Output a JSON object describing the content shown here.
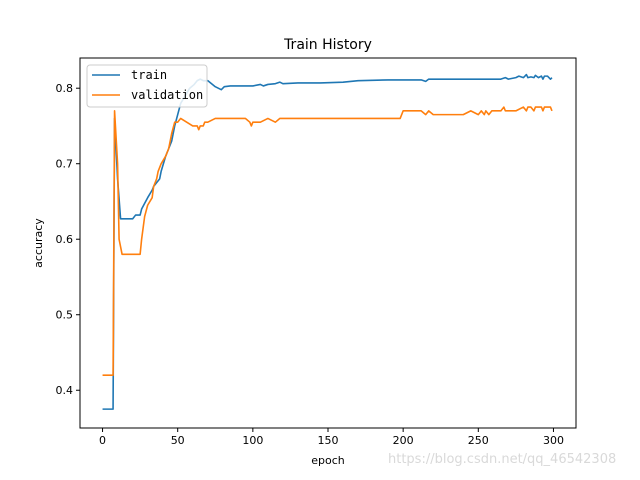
{
  "chart_data": {
    "type": "line",
    "title": "Train History",
    "xlabel": "epoch",
    "ylabel": "accuracy",
    "xlim": [
      -15,
      315
    ],
    "ylim": [
      0.35,
      0.84
    ],
    "xticks": [
      0,
      50,
      100,
      150,
      200,
      250,
      300
    ],
    "yticks": [
      0.4,
      0.5,
      0.6,
      0.7,
      0.8
    ],
    "ytick_labels": [
      "0.4",
      "0.5",
      "0.6",
      "0.7",
      "0.8"
    ],
    "grid": false,
    "legend": "upper-left",
    "series": [
      {
        "name": "train",
        "color": "#1f77b4",
        "x": [
          0,
          5,
          6,
          7,
          8,
          10,
          12,
          13,
          16,
          20,
          22,
          25,
          26,
          30,
          33,
          34,
          36,
          38,
          39,
          42,
          44,
          46,
          48,
          52,
          58,
          61,
          63,
          65,
          67,
          69,
          70,
          75,
          79,
          81,
          85,
          95,
          100,
          105,
          107,
          110,
          115,
          118,
          120,
          130,
          145,
          160,
          170,
          190,
          200,
          212,
          215,
          217,
          240,
          250,
          260,
          265,
          268,
          270,
          275,
          277,
          280,
          282,
          283,
          285,
          287,
          288,
          290,
          292,
          293,
          294,
          296,
          298,
          299
        ],
        "y": [
          0.375,
          0.375,
          0.375,
          0.375,
          0.76,
          0.68,
          0.627,
          0.627,
          0.627,
          0.627,
          0.632,
          0.632,
          0.64,
          0.655,
          0.665,
          0.67,
          0.675,
          0.68,
          0.69,
          0.71,
          0.72,
          0.73,
          0.75,
          0.78,
          0.8,
          0.805,
          0.81,
          0.812,
          0.81,
          0.81,
          0.81,
          0.802,
          0.798,
          0.802,
          0.803,
          0.803,
          0.803,
          0.805,
          0.803,
          0.805,
          0.806,
          0.808,
          0.806,
          0.807,
          0.807,
          0.808,
          0.81,
          0.811,
          0.811,
          0.811,
          0.809,
          0.812,
          0.812,
          0.812,
          0.812,
          0.812,
          0.814,
          0.812,
          0.814,
          0.816,
          0.814,
          0.818,
          0.814,
          0.815,
          0.814,
          0.817,
          0.814,
          0.816,
          0.812,
          0.816,
          0.816,
          0.812,
          0.814
        ]
      },
      {
        "name": "validation",
        "color": "#ff7f0e",
        "x": [
          0,
          5,
          6,
          7,
          8,
          10,
          11,
          13,
          16,
          20,
          25,
          26,
          28,
          30,
          33,
          34,
          36,
          37,
          39,
          42,
          44,
          46,
          48,
          50,
          52,
          56,
          60,
          63,
          64,
          65,
          67,
          68,
          70,
          75,
          80,
          81,
          85,
          90,
          95,
          98,
          99,
          100,
          105,
          110,
          115,
          118,
          120,
          150,
          175,
          198,
          200,
          205,
          208,
          210,
          212,
          215,
          217,
          220,
          230,
          240,
          245,
          250,
          252,
          254,
          255,
          257,
          259,
          261,
          265,
          267,
          268,
          270,
          275,
          280,
          282,
          283,
          285,
          287,
          288,
          290,
          292,
          293,
          294,
          296,
          298,
          299
        ],
        "y": [
          0.42,
          0.42,
          0.42,
          0.42,
          0.77,
          0.7,
          0.6,
          0.58,
          0.58,
          0.58,
          0.58,
          0.6,
          0.63,
          0.645,
          0.655,
          0.67,
          0.68,
          0.69,
          0.7,
          0.71,
          0.72,
          0.74,
          0.755,
          0.755,
          0.76,
          0.755,
          0.75,
          0.75,
          0.745,
          0.75,
          0.75,
          0.755,
          0.755,
          0.76,
          0.76,
          0.76,
          0.76,
          0.76,
          0.76,
          0.755,
          0.75,
          0.755,
          0.755,
          0.76,
          0.755,
          0.76,
          0.76,
          0.76,
          0.76,
          0.76,
          0.77,
          0.77,
          0.77,
          0.77,
          0.77,
          0.765,
          0.77,
          0.765,
          0.765,
          0.765,
          0.77,
          0.765,
          0.77,
          0.765,
          0.77,
          0.765,
          0.77,
          0.77,
          0.77,
          0.775,
          0.77,
          0.77,
          0.77,
          0.775,
          0.77,
          0.775,
          0.775,
          0.77,
          0.775,
          0.775,
          0.775,
          0.77,
          0.775,
          0.775,
          0.775,
          0.77
        ]
      }
    ]
  },
  "watermark": "https://blog.csdn.net/qq_46542308"
}
